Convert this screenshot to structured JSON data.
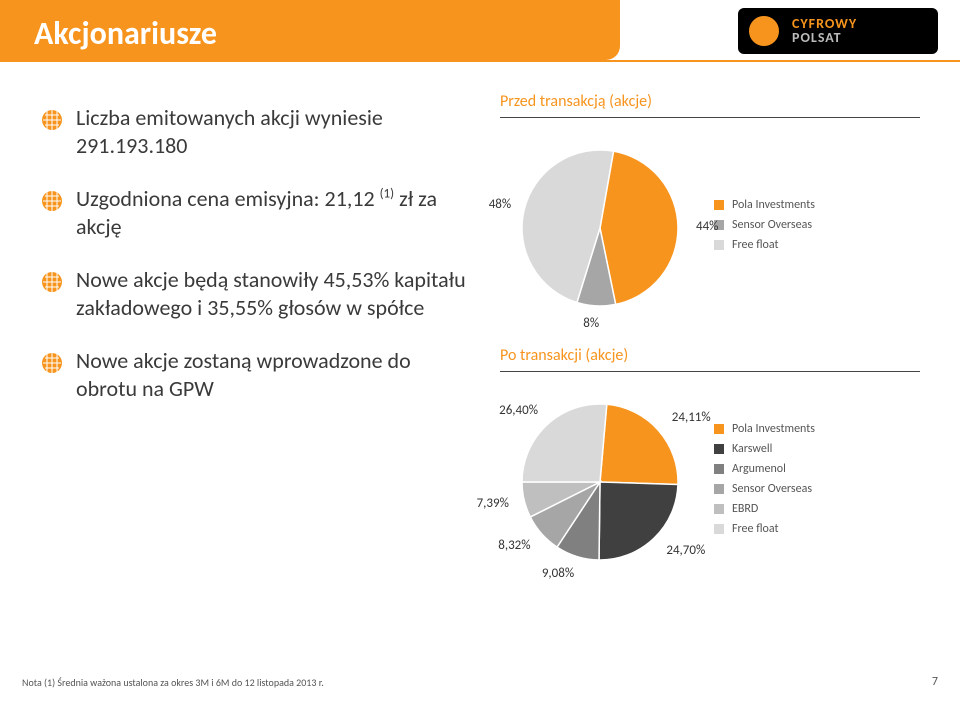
{
  "header": {
    "title": "Akcjonariusze",
    "logo": {
      "line1": "CYFROWY",
      "line2": "POLSAT"
    },
    "title_bg": "#f7941d",
    "title_color": "#ffffff",
    "title_fontsize": 32
  },
  "bullets": [
    "Liczba emitowanych akcji wyniesie 291.193.180",
    "Uzgodniona cena emisyjna: 21,12 (1) zł za akcję",
    "Nowe akcje będą stanowiły 45,53% kapitału zakładowego i 35,55% głosów w spółce",
    "Nowe akcje zostaną wprowadzone do obrotu na GPW"
  ],
  "bullet_style": {
    "fontsize": 22,
    "color": "#3a3a3a",
    "icon_color": "#f7941d"
  },
  "chart1": {
    "title": "Przed transakcją (akcje)",
    "type": "pie",
    "data": [
      {
        "name": "Pola Investments",
        "value": 44,
        "label": "44%",
        "color": "#f7941d"
      },
      {
        "name": "Sensor Overseas",
        "value": 8,
        "label": "8%",
        "color": "#a6a6a6"
      },
      {
        "name": "Free float",
        "value": 48,
        "label": "48%",
        "color": "#d9d9d9"
      }
    ],
    "radius": 78,
    "title_color": "#f7941d",
    "title_fontsize": 16,
    "label_fontsize": 13,
    "legend_fontsize": 12
  },
  "chart2": {
    "title": "Po transakcji (akcje)",
    "type": "pie",
    "data": [
      {
        "name": "Pola Investments",
        "value": 24.11,
        "label": "24,11%",
        "color": "#f7941d"
      },
      {
        "name": "Karswell",
        "value": 24.7,
        "label": "24,70%",
        "color": "#404040"
      },
      {
        "name": "Argumenol",
        "value": 9.08,
        "label": "9,08%",
        "color": "#808080"
      },
      {
        "name": "Sensor Overseas",
        "value": 8.32,
        "label": "8,32%",
        "color": "#a6a6a6"
      },
      {
        "name": "EBRD",
        "value": 7.39,
        "label": "7,39%",
        "color": "#bfbfbf"
      },
      {
        "name": "Free float",
        "value": 26.4,
        "label": "26,40%",
        "color": "#d9d9d9"
      }
    ],
    "radius": 78,
    "title_color": "#f7941d",
    "title_fontsize": 16,
    "label_fontsize": 13,
    "legend_fontsize": 12
  },
  "footnote": "Nota (1) Średnia ważona ustalona za okres 3M i 6M do 12 listopada 2013 r.",
  "page_number": "7"
}
